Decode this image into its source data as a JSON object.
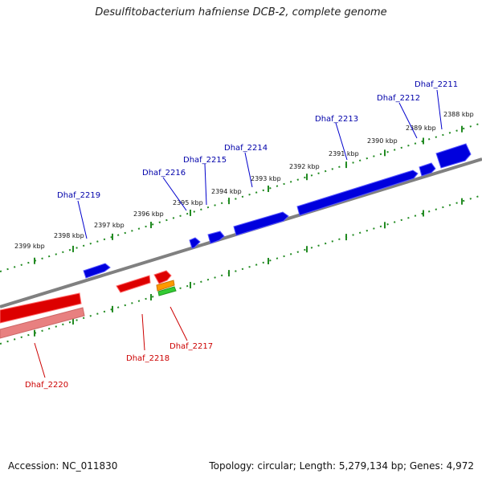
{
  "title": "Desulfitobacterium hafniense DCB-2, complete genome",
  "footer": {
    "accession": "Accession: NC_011830",
    "summary": "Topology: circular; Length: 5,279,134 bp; Genes: 4,972"
  },
  "colors": {
    "forward_gene": "#0000dd",
    "reverse_gene": "#dd0000",
    "reverse_gene_faded": "#e88080",
    "backbone": "#808080",
    "ticks": "#228b22",
    "orange_feature": "#ff9900",
    "green_feature": "#33cc33"
  },
  "kbp_labels": [
    "2388 kbp",
    "2389 kbp",
    "2390 kbp",
    "2391 kbp",
    "2392 kbp",
    "2393 kbp",
    "2394 kbp",
    "2395 kbp",
    "2396 kbp",
    "2397 kbp",
    "2398 kbp",
    "2399 kbp"
  ],
  "forward_genes": [
    "Dhaf_2211",
    "Dhaf_2212",
    "Dhaf_2213",
    "Dhaf_2214",
    "Dhaf_2215",
    "Dhaf_2216",
    "Dhaf_2219"
  ],
  "reverse_genes": [
    "Dhaf_2217",
    "Dhaf_2218",
    "Dhaf_2220"
  ]
}
